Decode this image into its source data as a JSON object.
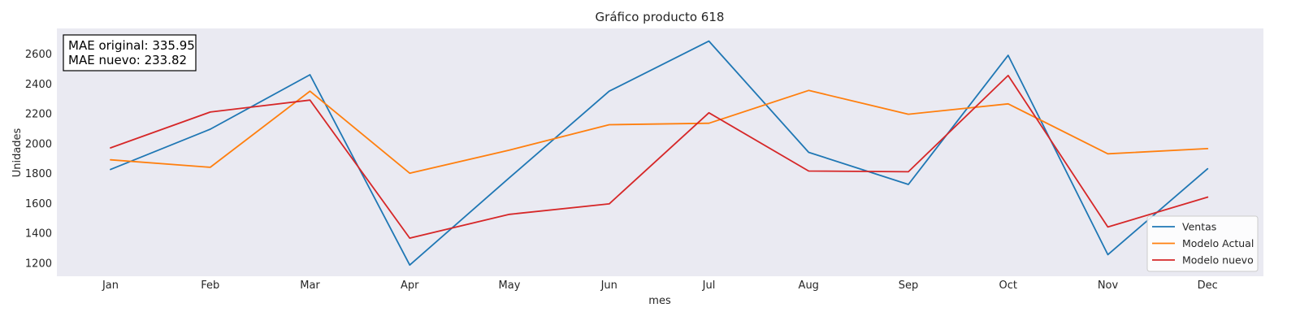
{
  "chart_data": {
    "type": "line",
    "title": "Gráfico producto 618",
    "xlabel": "mes",
    "ylabel": "Unidades",
    "categories": [
      "Jan",
      "Feb",
      "Mar",
      "Apr",
      "May",
      "Jun",
      "Jul",
      "Aug",
      "Sep",
      "Oct",
      "Nov",
      "Dec"
    ],
    "ylim": [
      1110,
      2770
    ],
    "yticks": [
      1200,
      1400,
      1600,
      1800,
      2000,
      2200,
      2400,
      2600
    ],
    "grid": false,
    "legend_position": "bottom-right",
    "annotation": {
      "lines": [
        "MAE original: 335.95",
        "MAE nuevo: 233.82"
      ]
    },
    "series": [
      {
        "name": "Ventas",
        "color": "#1f77b4",
        "values": [
          1825,
          2095,
          2460,
          1185,
          1770,
          2350,
          2685,
          1940,
          1725,
          2590,
          1255,
          1830
        ]
      },
      {
        "name": "Modelo Actual",
        "color": "#ff7f0e",
        "values": [
          1890,
          1840,
          2350,
          1800,
          1955,
          2125,
          2135,
          2355,
          2195,
          2265,
          1930,
          1965
        ]
      },
      {
        "name": "Modelo nuevo",
        "color": "#d62728",
        "values": [
          1970,
          2210,
          2290,
          1365,
          1525,
          1595,
          2205,
          1815,
          1810,
          2455,
          1440,
          1640
        ]
      }
    ]
  }
}
